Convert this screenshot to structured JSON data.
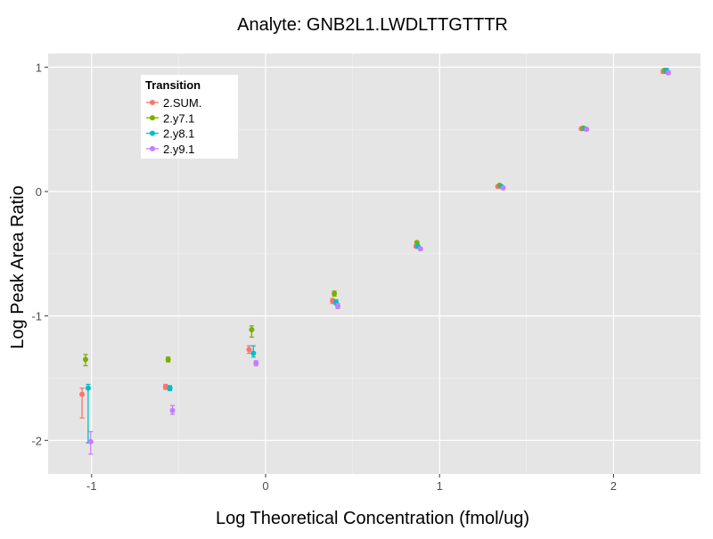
{
  "chart_data": {
    "type": "scatter",
    "title": "Analyte: GNB2L1.LWDLTTGTTTR",
    "xlabel": "Log Theoretical Concentration (fmol/ug)",
    "ylabel": "Log Peak Area Ratio",
    "xlim": [
      -1.25,
      2.5
    ],
    "ylim": [
      -2.27,
      1.11
    ],
    "x_ticks": [
      -1,
      0,
      1,
      2
    ],
    "y_ticks": [
      -2,
      -1,
      0,
      1
    ],
    "x_tick_labels": [
      "-1",
      "0",
      "1",
      "2"
    ],
    "y_tick_labels": [
      "-2",
      "-1",
      "0",
      "1"
    ],
    "grid": true,
    "legend_title": "Transition",
    "legend_position": "top-left",
    "series": [
      {
        "name": "2.SUM.",
        "color": "#F8766D",
        "points": [
          {
            "x": -1.055,
            "y": -1.63,
            "lo": -1.82,
            "hi": -1.58
          },
          {
            "x": -0.575,
            "y": -1.57,
            "lo": -1.59,
            "hi": -1.55
          },
          {
            "x": -0.095,
            "y": -1.27,
            "lo": -1.3,
            "hi": -1.24
          },
          {
            "x": 0.385,
            "y": -0.88,
            "lo": -0.9,
            "hi": -0.86
          },
          {
            "x": 0.865,
            "y": -0.44,
            "lo": -0.45,
            "hi": -0.43
          },
          {
            "x": 1.335,
            "y": 0.04,
            "lo": 0.03,
            "hi": 0.05
          },
          {
            "x": 1.815,
            "y": 0.505,
            "lo": 0.495,
            "hi": 0.515
          },
          {
            "x": 2.285,
            "y": 0.965,
            "lo": 0.95,
            "hi": 0.98
          }
        ]
      },
      {
        "name": "2.y7.1",
        "color": "#7CAE00",
        "points": [
          {
            "x": -1.035,
            "y": -1.35,
            "lo": -1.4,
            "hi": -1.31
          },
          {
            "x": -0.56,
            "y": -1.35,
            "lo": -1.37,
            "hi": -1.33
          },
          {
            "x": -0.08,
            "y": -1.11,
            "lo": -1.17,
            "hi": -1.08
          },
          {
            "x": 0.395,
            "y": -0.82,
            "lo": -0.84,
            "hi": -0.8
          },
          {
            "x": 0.87,
            "y": -0.41,
            "lo": -0.42,
            "hi": -0.4
          },
          {
            "x": 1.345,
            "y": 0.05,
            "lo": 0.04,
            "hi": 0.06
          },
          {
            "x": 1.825,
            "y": 0.51,
            "lo": 0.5,
            "hi": 0.52
          },
          {
            "x": 2.295,
            "y": 0.975,
            "lo": 0.96,
            "hi": 0.99
          }
        ]
      },
      {
        "name": "2.y8.1",
        "color": "#00BFC4",
        "points": [
          {
            "x": -1.02,
            "y": -1.58,
            "lo": -2.02,
            "hi": -1.55
          },
          {
            "x": -0.55,
            "y": -1.58,
            "lo": -1.6,
            "hi": -1.56
          },
          {
            "x": -0.07,
            "y": -1.3,
            "lo": -1.33,
            "hi": -1.24
          },
          {
            "x": 0.405,
            "y": -0.89,
            "lo": -0.91,
            "hi": -0.87
          },
          {
            "x": 0.875,
            "y": -0.44,
            "lo": -0.45,
            "hi": -0.43
          },
          {
            "x": 1.355,
            "y": 0.04,
            "lo": 0.03,
            "hi": 0.05
          },
          {
            "x": 1.835,
            "y": 0.505,
            "lo": 0.495,
            "hi": 0.515
          },
          {
            "x": 2.305,
            "y": 0.97,
            "lo": 0.95,
            "hi": 0.99
          }
        ]
      },
      {
        "name": "2.y9.1",
        "color": "#C77CFF",
        "points": [
          {
            "x": -1.005,
            "y": -2.01,
            "lo": -2.11,
            "hi": -1.93
          },
          {
            "x": -0.535,
            "y": -1.76,
            "lo": -1.79,
            "hi": -1.72
          },
          {
            "x": -0.055,
            "y": -1.38,
            "lo": -1.4,
            "hi": -1.36
          },
          {
            "x": 0.415,
            "y": -0.92,
            "lo": -0.94,
            "hi": -0.9
          },
          {
            "x": 0.89,
            "y": -0.46,
            "lo": -0.47,
            "hi": -0.45
          },
          {
            "x": 1.365,
            "y": 0.03,
            "lo": 0.02,
            "hi": 0.04
          },
          {
            "x": 1.845,
            "y": 0.5,
            "lo": 0.49,
            "hi": 0.51
          },
          {
            "x": 2.315,
            "y": 0.955,
            "lo": 0.94,
            "hi": 0.97
          }
        ]
      }
    ]
  }
}
